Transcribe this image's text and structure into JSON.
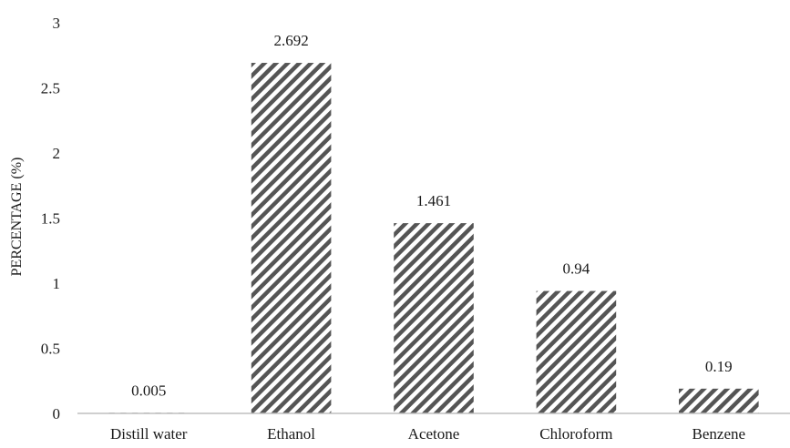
{
  "chart_data": {
    "type": "bar",
    "title": "",
    "xlabel": "",
    "ylabel": "PERCENTAGE (%)",
    "categories": [
      "Distill water",
      "Ethanol",
      "Acetone",
      "Chloroform",
      "Benzene"
    ],
    "values": [
      0.005,
      2.692,
      1.461,
      0.94,
      0.19
    ],
    "value_labels": [
      "0.005",
      "2.692",
      "1.461",
      "0.94",
      "0.19"
    ],
    "ylim": [
      0,
      3
    ],
    "yticks": [
      "0",
      "0.5",
      "1",
      "1.5",
      "2",
      "2.5",
      "3"
    ],
    "grid": false,
    "legend": "none",
    "bar_fill": "diagonal-hatch",
    "colors": {
      "hatch": "#555555",
      "background": "#ffffff",
      "axis": "#bfbfbf",
      "text": "#1a1a1a"
    }
  }
}
